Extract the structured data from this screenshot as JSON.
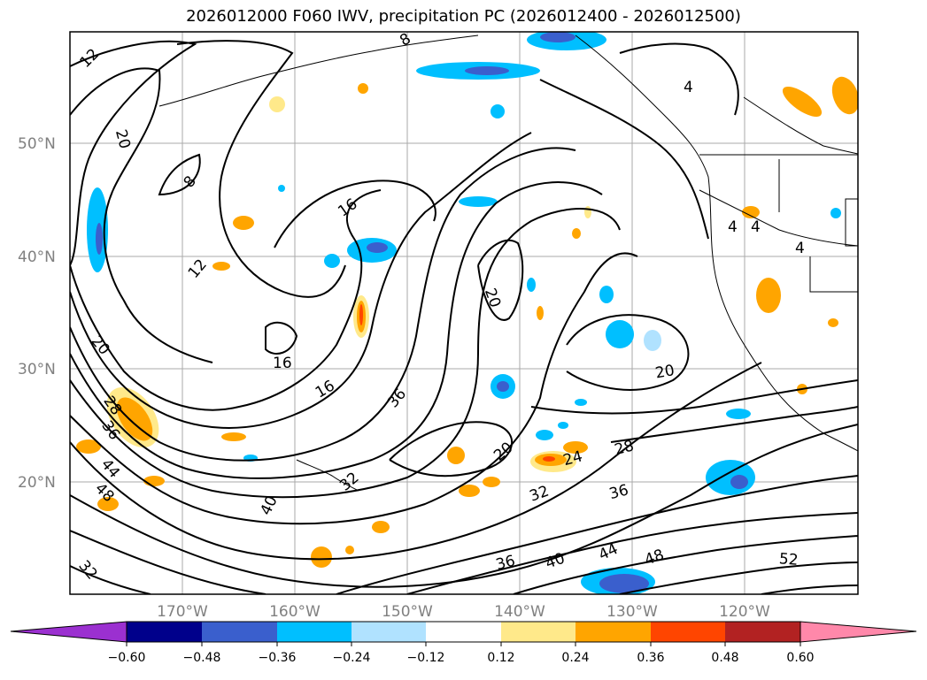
{
  "title": "2026012000 F060 IWV, precipitation PC (2026012400 - 2026012500)",
  "map": {
    "lat_labels": [
      "50°N",
      "40°N",
      "30°N",
      "20°N"
    ],
    "lon_labels": [
      "170°W",
      "160°W",
      "150°W",
      "140°W",
      "130°W",
      "120°W"
    ],
    "contour_labels": [
      "12",
      "20",
      "8",
      "12",
      "16",
      "16",
      "16",
      "20",
      "28",
      "36",
      "44",
      "48",
      "40",
      "32",
      "36",
      "32",
      "20",
      "20",
      "24",
      "28",
      "32",
      "36",
      "36",
      "40",
      "44",
      "48",
      "52",
      "4",
      "4",
      "4",
      "4",
      "8"
    ]
  },
  "colorbar": {
    "colors": [
      "#9b30d0",
      "#00008b",
      "#3a5fcd",
      "#00bfff",
      "#b0e2ff",
      "#ffffff",
      "#ffe98a",
      "#ffa500",
      "#ff4500",
      "#b22222",
      "#ff88aa"
    ],
    "labels": [
      "−0.60",
      "−0.48",
      "−0.36",
      "−0.24",
      "−0.12",
      "0.12",
      "0.24",
      "0.36",
      "0.48",
      "0.60"
    ]
  }
}
